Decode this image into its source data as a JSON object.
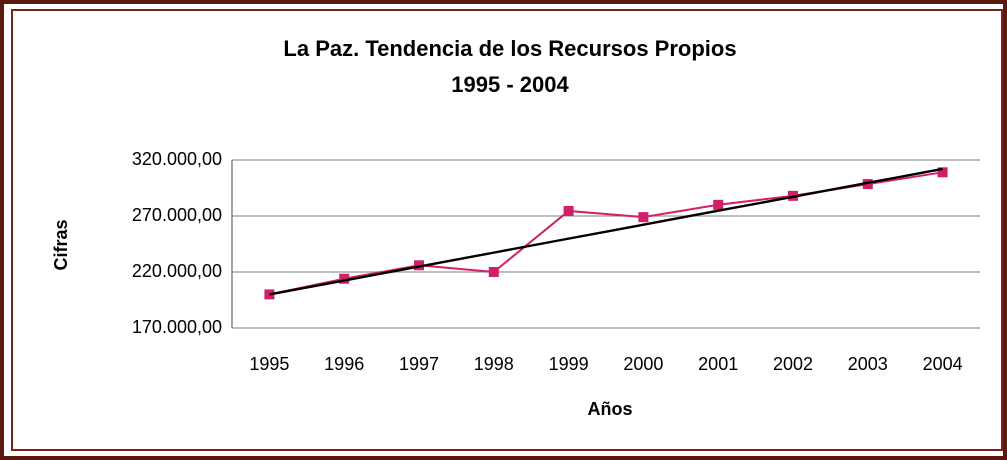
{
  "chart_data": {
    "type": "line",
    "title": "La Paz. Tendencia de los Recursos Propios",
    "subtitle": "1995 - 2004",
    "x_label": "Años",
    "y_label": "Cifras",
    "categories": [
      "1995",
      "1996",
      "1997",
      "1998",
      "1999",
      "2000",
      "2001",
      "2002",
      "2003",
      "2004"
    ],
    "series": [
      {
        "color": "#d0206a",
        "values": [
          200000,
          214000,
          226000,
          220000,
          274500,
          269000,
          280000,
          288000,
          298500,
          309000
        ]
      },
      {
        "color": "#000000",
        "values": [
          200000,
          212400,
          224900,
          237300,
          249800,
          262200,
          274700,
          287100,
          299600,
          312000
        ]
      }
    ],
    "ylim": [
      170000,
      320000
    ],
    "yticks": [
      {
        "value": 170000,
        "label": "170.000,00"
      },
      {
        "value": 220000,
        "label": "220.000,00"
      },
      {
        "value": 270000,
        "label": "270.000,00"
      },
      {
        "value": 320000,
        "label": "320.000,00"
      }
    ],
    "grid": true
  }
}
